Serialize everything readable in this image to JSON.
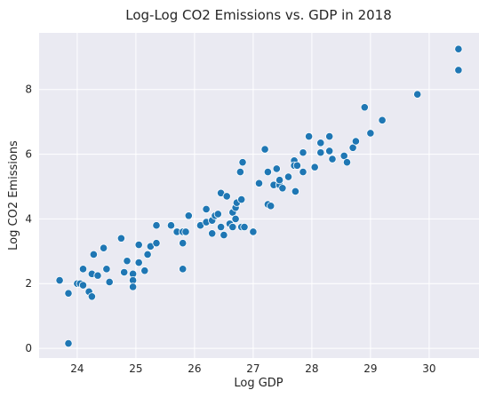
{
  "chart_data": {
    "type": "scatter",
    "title": "Log-Log CO2 Emissions vs. GDP in 2018",
    "xlabel": "Log GDP",
    "ylabel": "Log CO2 Emissions",
    "xlim": [
      23.35,
      30.85
    ],
    "ylim": [
      -0.3,
      9.75
    ],
    "xticks": [
      24,
      25,
      26,
      27,
      28,
      29,
      30
    ],
    "yticks": [
      0,
      2,
      4,
      6,
      8
    ],
    "grid": true,
    "legend": "none",
    "background_color": "#eaeaf2",
    "grid_color": "#ffffff",
    "marker_color": "#1f77b4",
    "points": [
      [
        23.7,
        2.1
      ],
      [
        23.85,
        1.7
      ],
      [
        23.85,
        0.15
      ],
      [
        24.0,
        2.0
      ],
      [
        24.05,
        2.0
      ],
      [
        24.1,
        2.45
      ],
      [
        24.1,
        1.95
      ],
      [
        24.2,
        1.75
      ],
      [
        24.25,
        1.6
      ],
      [
        24.25,
        2.3
      ],
      [
        24.28,
        2.9
      ],
      [
        24.35,
        2.25
      ],
      [
        24.45,
        3.1
      ],
      [
        24.5,
        2.45
      ],
      [
        24.55,
        2.05
      ],
      [
        24.75,
        3.4
      ],
      [
        24.8,
        2.35
      ],
      [
        24.85,
        2.7
      ],
      [
        24.95,
        2.3
      ],
      [
        24.95,
        2.1
      ],
      [
        24.95,
        1.9
      ],
      [
        25.05,
        3.2
      ],
      [
        25.05,
        2.65
      ],
      [
        25.15,
        2.4
      ],
      [
        25.2,
        2.9
      ],
      [
        25.25,
        3.15
      ],
      [
        25.35,
        3.8
      ],
      [
        25.35,
        3.25
      ],
      [
        25.6,
        3.8
      ],
      [
        25.7,
        3.6
      ],
      [
        25.8,
        3.6
      ],
      [
        25.8,
        3.25
      ],
      [
        25.8,
        2.45
      ],
      [
        25.85,
        3.6
      ],
      [
        25.9,
        4.1
      ],
      [
        26.1,
        3.8
      ],
      [
        26.2,
        3.9
      ],
      [
        26.2,
        4.3
      ],
      [
        26.3,
        3.55
      ],
      [
        26.3,
        3.95
      ],
      [
        26.35,
        4.1
      ],
      [
        26.4,
        4.15
      ],
      [
        26.45,
        4.8
      ],
      [
        26.45,
        3.75
      ],
      [
        26.5,
        3.5
      ],
      [
        26.55,
        4.7
      ],
      [
        26.6,
        3.85
      ],
      [
        26.65,
        3.75
      ],
      [
        26.65,
        4.2
      ],
      [
        26.7,
        4.0
      ],
      [
        26.7,
        4.35
      ],
      [
        26.72,
        4.5
      ],
      [
        26.78,
        5.45
      ],
      [
        26.8,
        4.6
      ],
      [
        26.8,
        3.75
      ],
      [
        26.82,
        5.75
      ],
      [
        26.85,
        3.75
      ],
      [
        27.0,
        3.6
      ],
      [
        27.1,
        5.1
      ],
      [
        27.2,
        6.15
      ],
      [
        27.25,
        4.45
      ],
      [
        27.25,
        5.45
      ],
      [
        27.3,
        4.4
      ],
      [
        27.35,
        5.05
      ],
      [
        27.4,
        5.55
      ],
      [
        27.45,
        5.05
      ],
      [
        27.45,
        5.2
      ],
      [
        27.5,
        4.95
      ],
      [
        27.6,
        5.3
      ],
      [
        27.7,
        5.8
      ],
      [
        27.7,
        5.65
      ],
      [
        27.72,
        4.85
      ],
      [
        27.75,
        5.65
      ],
      [
        27.85,
        6.05
      ],
      [
        27.85,
        5.45
      ],
      [
        27.95,
        6.55
      ],
      [
        28.05,
        5.6
      ],
      [
        28.15,
        6.35
      ],
      [
        28.15,
        6.05
      ],
      [
        28.3,
        6.55
      ],
      [
        28.3,
        6.1
      ],
      [
        28.35,
        5.85
      ],
      [
        28.55,
        5.95
      ],
      [
        28.6,
        5.75
      ],
      [
        28.7,
        6.2
      ],
      [
        28.75,
        6.4
      ],
      [
        28.9,
        7.45
      ],
      [
        29.0,
        6.65
      ],
      [
        29.2,
        7.05
      ],
      [
        29.8,
        7.85
      ],
      [
        30.5,
        9.25
      ],
      [
        30.5,
        8.6
      ]
    ]
  }
}
